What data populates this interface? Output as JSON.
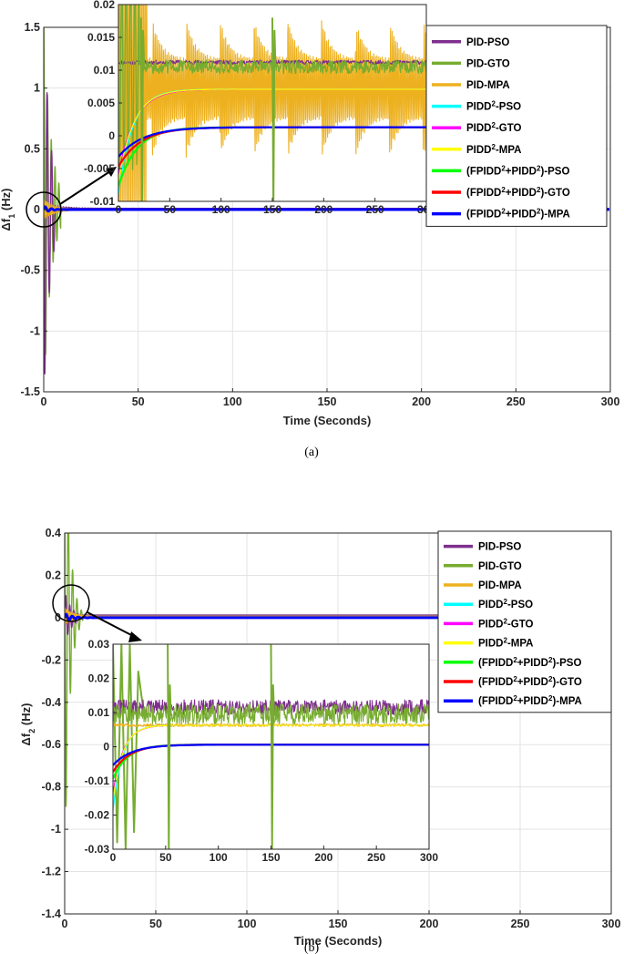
{
  "chart_data": [
    {
      "panel": "a",
      "type": "line",
      "caption": "(a)",
      "title": "",
      "xlabel": "Time (Seconds)",
      "ylabel": {
        "base": "Δf",
        "sub": "1",
        "unit": " (Hz)"
      },
      "xlim": [
        0,
        300
      ],
      "ylim": [
        -1.5,
        1.5
      ],
      "xticks": [
        0,
        50,
        100,
        150,
        200,
        250,
        300
      ],
      "yticks": [
        -1.5,
        -1,
        -0.5,
        0,
        0.5,
        1,
        1.5
      ],
      "ytick_labels": [
        "-1.5",
        "-1",
        "-0.5",
        "0",
        "0.5",
        "1",
        "1.5"
      ],
      "grid": true,
      "legend": "top-right",
      "inset": {
        "xlim": [
          0,
          300
        ],
        "ylim": [
          -0.01,
          0.02
        ],
        "xticks": [
          0,
          50,
          100,
          150,
          200,
          250,
          300
        ],
        "yticks": [
          -0.01,
          -0.005,
          0,
          0.005,
          0.01,
          0.015,
          0.02
        ],
        "ytick_labels": [
          "-0.01",
          "-0.005",
          "0",
          "0.005",
          "0.01",
          "0.015",
          "0.02"
        ],
        "zoom_origin": "circle around t=0, Δf=0"
      }
    },
    {
      "panel": "b",
      "type": "line",
      "caption": "(b)",
      "title": "",
      "xlabel": "Time (Seconds)",
      "ylabel": {
        "base": "Δf",
        "sub": "2",
        "unit": " (Hz)"
      },
      "xlim": [
        0,
        300
      ],
      "ylim": [
        -1.4,
        0.4
      ],
      "xticks": [
        0,
        50,
        100,
        150,
        200,
        250,
        300
      ],
      "yticks": [
        -1.4,
        -1.2,
        -1,
        -0.8,
        -0.6,
        -0.4,
        -0.2,
        0,
        0.2,
        0.4
      ],
      "ytick_labels": [
        "-1.4",
        "-1.2",
        "-1",
        "-0.8",
        "-0.6",
        "-0.4",
        "-0.2",
        "0",
        "0.2",
        "0.4"
      ],
      "grid": true,
      "legend": "top-right",
      "inset": {
        "xlim": [
          0,
          300
        ],
        "ylim": [
          -0.03,
          0.03
        ],
        "xticks": [
          0,
          50,
          100,
          150,
          200,
          250,
          300
        ],
        "yticks": [
          -0.03,
          -0.02,
          -0.01,
          0,
          0.01,
          0.02,
          0.03
        ],
        "ytick_labels": [
          "-0.03",
          "-0.02",
          "-0.01",
          "0",
          "0.01",
          "0.02",
          "0.03"
        ],
        "zoom_origin": "circle around t=0, Δf=0"
      }
    }
  ],
  "series": [
    {
      "name": "PID-PSO",
      "parts": [
        {
          "t": "PID-PSO"
        }
      ],
      "color": "#7E2F8E"
    },
    {
      "name": "PID-GTO",
      "parts": [
        {
          "t": "PID-GTO"
        }
      ],
      "color": "#77AC30"
    },
    {
      "name": "PID-MPA",
      "parts": [
        {
          "t": "PID-MPA"
        }
      ],
      "color": "#EDB120"
    },
    {
      "name": "PIDD2-PSO",
      "parts": [
        {
          "t": "PIDD"
        },
        {
          "t": "2",
          "sup": true
        },
        {
          "t": "-PSO"
        }
      ],
      "color": "#00FFFF"
    },
    {
      "name": "PIDD2-GTO",
      "parts": [
        {
          "t": "PIDD"
        },
        {
          "t": "2",
          "sup": true
        },
        {
          "t": "-GTO"
        }
      ],
      "color": "#FF00FF"
    },
    {
      "name": "PIDD2-MPA",
      "parts": [
        {
          "t": "PIDD"
        },
        {
          "t": "2",
          "sup": true
        },
        {
          "t": "-MPA"
        }
      ],
      "color": "#FFFF00"
    },
    {
      "name": "(FPIDD2+PIDD2)-PSO",
      "parts": [
        {
          "t": "(FPIDD"
        },
        {
          "t": "2",
          "sup": true
        },
        {
          "t": "+PIDD"
        },
        {
          "t": "2",
          "sup": true
        },
        {
          "t": ")-PSO"
        }
      ],
      "color": "#00FF00"
    },
    {
      "name": "(FPIDD2+PIDD2)-GTO",
      "parts": [
        {
          "t": "(FPIDD"
        },
        {
          "t": "2",
          "sup": true
        },
        {
          "t": "+PIDD"
        },
        {
          "t": "2",
          "sup": true
        },
        {
          "t": ")-GTO"
        }
      ],
      "color": "#FF0000"
    },
    {
      "name": "(FPIDD2+PIDD2)-MPA",
      "parts": [
        {
          "t": "(FPIDD"
        },
        {
          "t": "2",
          "sup": true
        },
        {
          "t": "+PIDD"
        },
        {
          "t": "2",
          "sup": true
        },
        {
          "t": ")-MPA"
        }
      ],
      "color": "#0000FF"
    }
  ]
}
